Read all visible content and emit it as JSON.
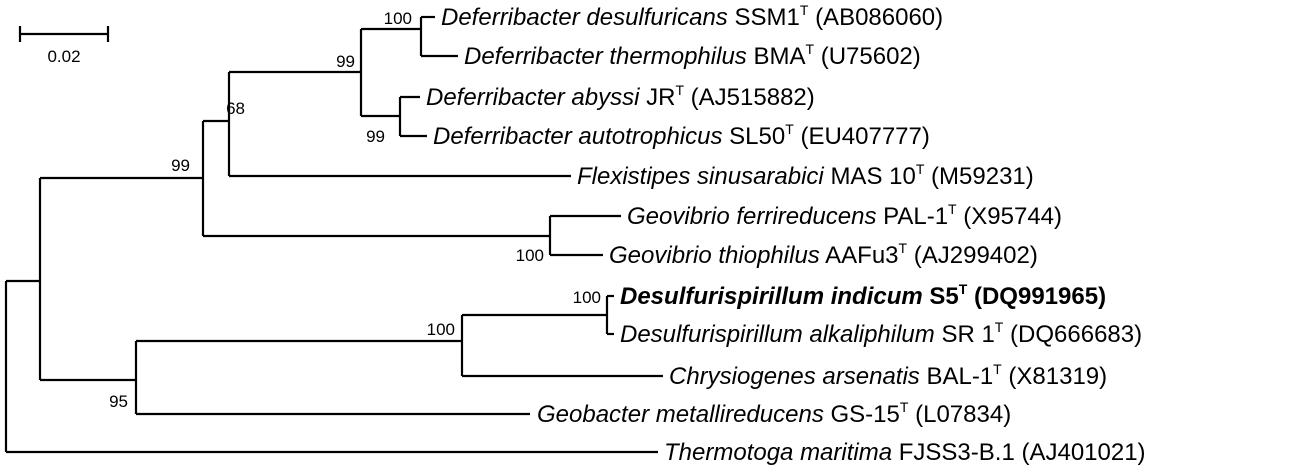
{
  "scale_bar": {
    "label": "0.02"
  },
  "taxa": [
    {
      "id": "t1",
      "genus_species": "Deferribacter desulfuricans",
      "strain": "SSM1",
      "type_mark": "T",
      "accession": "(AB086060)",
      "bold": false
    },
    {
      "id": "t2",
      "genus_species": "Deferribacter thermophilus",
      "strain": "BMA",
      "type_mark": "T",
      "accession": "(U75602)",
      "bold": false
    },
    {
      "id": "t3",
      "genus_species": "Deferribacter abyssi",
      "strain": "JR",
      "type_mark": "T",
      "accession": "(AJ515882)",
      "bold": false
    },
    {
      "id": "t4",
      "genus_species": "Deferribacter autotrophicus",
      "strain": "SL50",
      "type_mark": "T",
      "accession": "(EU407777)",
      "bold": false
    },
    {
      "id": "t5",
      "genus_species": "Flexistipes sinusarabici",
      "strain": "MAS 10",
      "type_mark": "T",
      "accession": "(M59231)",
      "bold": false
    },
    {
      "id": "t6",
      "genus_species": "Geovibrio ferrireducens",
      "strain": "PAL-1",
      "type_mark": "T",
      "accession": "(X95744)",
      "bold": false
    },
    {
      "id": "t7",
      "genus_species": "Geovibrio thiophilus",
      "strain": "AAFu3",
      "type_mark": "T",
      "accession": "(AJ299402)",
      "bold": false
    },
    {
      "id": "t8",
      "genus_species": "Desulfurispirillum indicum",
      "strain": "S5",
      "type_mark": "T",
      "accession": "(DQ991965)",
      "bold": true
    },
    {
      "id": "t9",
      "genus_species": "Desulfurispirillum alkaliphilum",
      "strain": "SR 1",
      "type_mark": "T",
      "accession": "(DQ666683)",
      "bold": false
    },
    {
      "id": "t10",
      "genus_species": "Chrysiogenes arsenatis",
      "strain": "BAL-1",
      "type_mark": "T",
      "accession": "(X81319)",
      "bold": false
    },
    {
      "id": "t11",
      "genus_species": "Geobacter metallireducens",
      "strain": "GS-15",
      "type_mark": "T",
      "accession": "(L07834)",
      "bold": false
    },
    {
      "id": "t12",
      "genus_species": "Thermotoga maritima",
      "strain": "FJSS3-B.1",
      "type_mark": "",
      "accession": "(AJ401021)",
      "bold": false
    }
  ],
  "bootstrap_values": [
    {
      "node": "desulfuricans-thermophilus",
      "value": "100"
    },
    {
      "node": "deferribacter-all",
      "value": "99"
    },
    {
      "node": "abyssi-autotrophicus",
      "value": "99"
    },
    {
      "node": "deferribacter-flexistipes",
      "value": "68"
    },
    {
      "node": "deferribacteres-geovibrio",
      "value": "99"
    },
    {
      "node": "geovibrio",
      "value": "100"
    },
    {
      "node": "desulfurispirillum",
      "value": "100"
    },
    {
      "node": "desulfurispirillum-chrysiogenes",
      "value": "100"
    },
    {
      "node": "chrysiogenes-geobacter",
      "value": "95"
    }
  ]
}
